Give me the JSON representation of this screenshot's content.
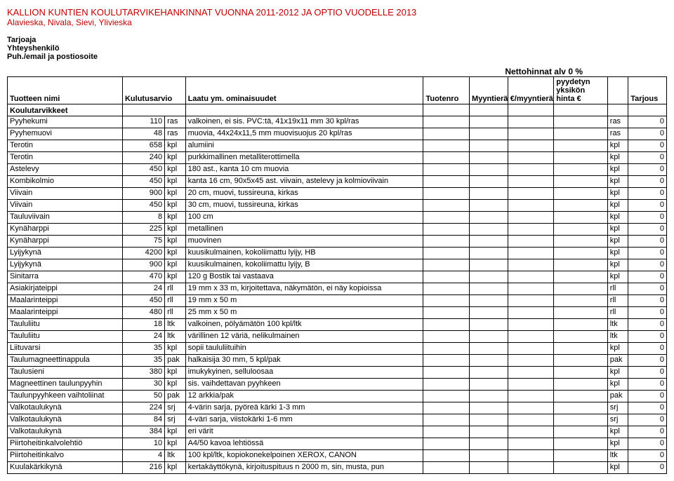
{
  "header": {
    "title": "KALLION KUNTIEN KOULUTARVIKEHANKINNAT VUONNA 2011-2012 JA OPTIO VUODELLE 2013",
    "subtitle": "Alavieska, Nivala, Sievi, Ylivieska",
    "tarjoaja": "Tarjoaja",
    "yhteyshenkilo": "Yhteyshenkilö",
    "puhemail": "Puh./email ja postiosoite",
    "netto": "Nettohinnat alv 0 %"
  },
  "thead": {
    "name": "Tuotteen nimi",
    "kul": "Kulutusarvio",
    "laatu": "Laatu ym. ominaisuudet",
    "tuotenro": "Tuotenro",
    "myyntiera": "Myyntierä",
    "eurmyyntiera": "€/myyntierä",
    "pyydetyn": "pyydetyn yksikön hinta €",
    "tarjous": "Tarjous",
    "koulutarvikkeet": "Koulutarvikkeet"
  },
  "rows": [
    {
      "name": "Pyyhekumi",
      "qty": "110",
      "u": "ras",
      "desc": "valkoinen, ei sis. PVC:tä, 41x19x11 mm 30 kpl/ras",
      "u2": "ras",
      "z": "0"
    },
    {
      "name": "Pyyhemuovi",
      "qty": "48",
      "u": "ras",
      "desc": "muovia, 44x24x11,5 mm muovisuojus 20 kpl/ras",
      "u2": "ras",
      "z": "0"
    },
    {
      "name": "Terotin",
      "qty": "658",
      "u": "kpl",
      "desc": "alumiini",
      "u2": "kpl",
      "z": "0"
    },
    {
      "name": "Terotin",
      "qty": "240",
      "u": "kpl",
      "desc": "purkkimallinen metalliterottimella",
      "u2": "kpl",
      "z": "0"
    },
    {
      "name": "Astelevy",
      "qty": "450",
      "u": "kpl",
      "desc": "180 ast., kanta 10 cm muovia",
      "u2": "kpl",
      "z": "0"
    },
    {
      "name": "Kombikolmio",
      "qty": "450",
      "u": "kpl",
      "desc": "kanta 16 cm, 90x5x45 ast. viivain, astelevy ja kolmioviivain",
      "u2": "kpl",
      "z": "0"
    },
    {
      "name": "Viivain",
      "qty": "900",
      "u": "kpl",
      "desc": "20 cm, muovi, tussireuna, kirkas",
      "u2": "kpl",
      "z": "0"
    },
    {
      "name": "Viivain",
      "qty": "450",
      "u": "kpl",
      "desc": "30 cm, muovi, tussireuna, kirkas",
      "u2": "kpl",
      "z": "0"
    },
    {
      "name": "Tauluviivain",
      "qty": "8",
      "u": "kpl",
      "desc": "100 cm",
      "u2": "kpl",
      "z": "0"
    },
    {
      "name": "Kynäharppi",
      "qty": "225",
      "u": "kpl",
      "desc": "metallinen",
      "u2": "kpl",
      "z": "0"
    },
    {
      "name": "Kynäharppi",
      "qty": "75",
      "u": "kpl",
      "desc": "muovinen",
      "u2": "kpl",
      "z": "0"
    },
    {
      "name": "Lyijykynä",
      "qty": "4200",
      "u": "kpl",
      "desc": "kuusikulmainen, kokoliimattu lyijy, HB",
      "u2": "kpl",
      "z": "0"
    },
    {
      "name": "Lyijykynä",
      "qty": "900",
      "u": "kpl",
      "desc": "kuusikulmainen, kokoliimattu lyijy, B",
      "u2": "kpl",
      "z": "0"
    },
    {
      "name": "Sinitarra",
      "qty": "470",
      "u": "kpl",
      "desc": "120 g Bostik tai vastaava",
      "u2": "kpl",
      "z": "0"
    },
    {
      "name": "Asiakirjateippi",
      "qty": "24",
      "u": "rll",
      "desc": "19 mm x 33 m, kirjoitettava, näkymätön, ei näy kopioissa",
      "u2": "rll",
      "z": "0"
    },
    {
      "name": "Maalarinteippi",
      "qty": "450",
      "u": "rll",
      "desc": "19 mm x 50 m",
      "u2": "rll",
      "z": "0"
    },
    {
      "name": "Maalarinteippi",
      "qty": "480",
      "u": "rll",
      "desc": "25 mm x 50 m",
      "u2": "rll",
      "z": "0"
    },
    {
      "name": "Taululiitu",
      "qty": "18",
      "u": "ltk",
      "desc": "valkoinen, pölyämätön 100 kpl/ltk",
      "u2": "ltk",
      "z": "0"
    },
    {
      "name": "Taululiitu",
      "qty": "24",
      "u": "ltk",
      "desc": "värillinen 12 väriä, nelikulmainen",
      "u2": "ltk",
      "z": "0"
    },
    {
      "name": "Liituvarsi",
      "qty": "35",
      "u": "kpl",
      "desc": "sopii taululiituihin",
      "u2": "kpl",
      "z": "0"
    },
    {
      "name": "Taulumagneettinappula",
      "qty": "35",
      "u": "pak",
      "desc": "halkaisija 30 mm, 5 kpl/pak",
      "u2": "pak",
      "z": "0"
    },
    {
      "name": "Taulusieni",
      "qty": "380",
      "u": "kpl",
      "desc": "imukykyinen, selluloosaa",
      "u2": "kpl",
      "z": "0"
    },
    {
      "name": "Magneettinen taulunpyyhin",
      "qty": "30",
      "u": "kpl",
      "desc": "sis. vaihdettavan pyyhkeen",
      "u2": "kpl",
      "z": "0"
    },
    {
      "name": "Taulunpyyhkeen vaihtoliinat",
      "qty": "50",
      "u": "pak",
      "desc": "12 arkkia/pak",
      "u2": "pak",
      "z": "0"
    },
    {
      "name": "Valkotaulukynä",
      "qty": "224",
      "u": "srj",
      "desc": "4-värin sarja, pyöreä kärki 1-3 mm",
      "u2": "srj",
      "z": "0"
    },
    {
      "name": "Valkotaulukynä",
      "qty": "84",
      "u": "srj",
      "desc": "4-väri sarja, viistokärki 1-6 mm",
      "u2": "srj",
      "z": "0"
    },
    {
      "name": "Valkotaulukynä",
      "qty": "384",
      "u": "kpl",
      "desc": "eri värit",
      "u2": "kpl",
      "z": "0"
    },
    {
      "name": "Piirtoheitinkalvolehtiö",
      "qty": "10",
      "u": "kpl",
      "desc": "A4/50 kavoa lehtiössä",
      "u2": "kpl",
      "z": "0"
    },
    {
      "name": "Piirtoheitinkalvo",
      "qty": "4",
      "u": "ltk",
      "desc": "100 kpl/ltk, kopiokonekelpoinen XEROX, CANON",
      "u2": "ltk",
      "z": "0"
    },
    {
      "name": "Kuulakärkikynä",
      "qty": "216",
      "u": "kpl",
      "desc": "kertakäyttökynä, kirjoituspituus n 2000 m, sin, musta, pun",
      "u2": "kpl",
      "z": "0"
    }
  ]
}
